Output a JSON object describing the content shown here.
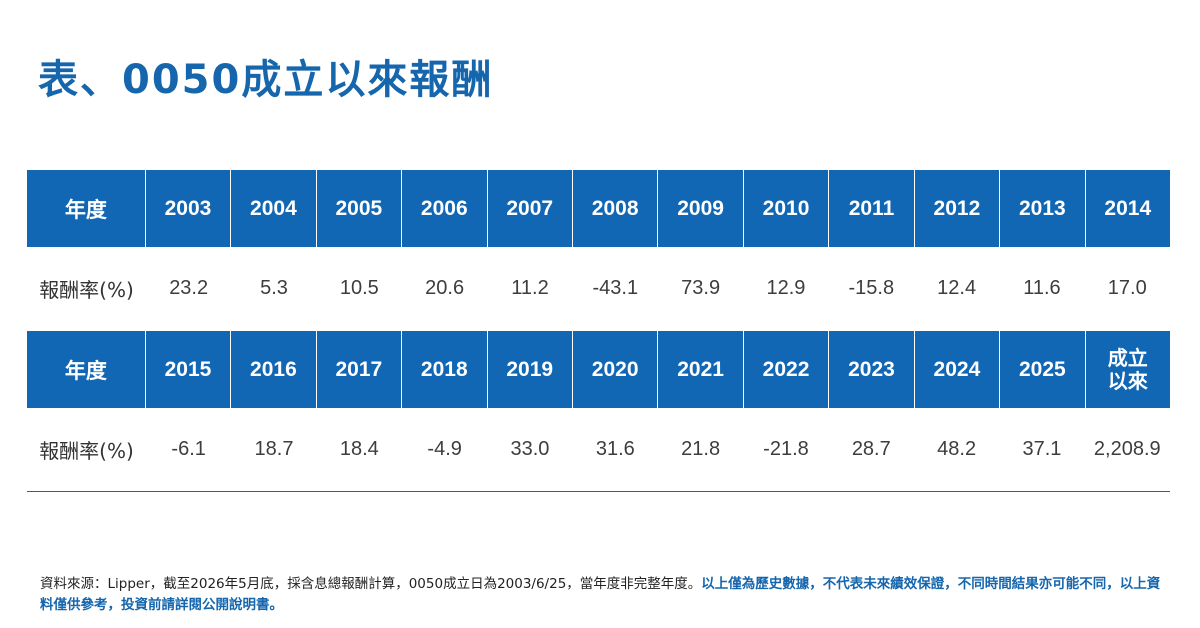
{
  "title": "表、0050成立以來報酬",
  "table1": {
    "header_label": "年度",
    "row_label": "報酬率(%)",
    "years": [
      "2003",
      "2004",
      "2005",
      "2006",
      "2007",
      "2008",
      "2009",
      "2010",
      "2011",
      "2012",
      "2013",
      "2014"
    ],
    "values": [
      "23.2",
      "5.3",
      "10.5",
      "20.6",
      "11.2",
      "-43.1",
      "73.9",
      "12.9",
      "-15.8",
      "12.4",
      "11.6",
      "17.0"
    ]
  },
  "table2": {
    "header_label": "年度",
    "row_label": "報酬率(%)",
    "years": [
      "2015",
      "2016",
      "2017",
      "2018",
      "2019",
      "2020",
      "2021",
      "2022",
      "2023",
      "2024",
      "2025",
      "成立\n以來"
    ],
    "values": [
      "-6.1",
      "18.7",
      "18.4",
      "-4.9",
      "33.0",
      "31.6",
      "21.8",
      "-21.8",
      "28.7",
      "48.2",
      "37.1",
      "2,208.9"
    ]
  },
  "footnote": {
    "source": "資料來源：Lipper，截至2026年5月底，採含息總報酬計算，0050成立日為2003/6/25，當年度非完整年度。",
    "disclaimer": "以上僅為歷史數據，不代表未來績效保證，不同時間結果亦可能不同，以上資料僅供參考，投資前請詳閱公開說明書。"
  },
  "colors": {
    "accent": "#1267b4",
    "title": "#1566ad"
  }
}
